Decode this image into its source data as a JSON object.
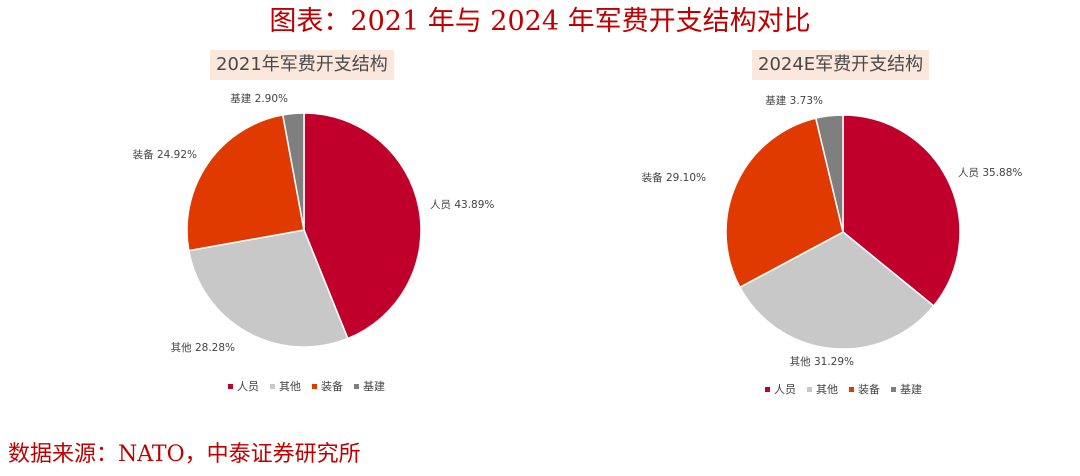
{
  "figure_title": "图表：2021 年与 2024 年军费开支结构对比",
  "source": "数据来源：NATO，中泰证券研究所",
  "chart_data": [
    {
      "type": "pie",
      "title": "2021年军费开支结构",
      "legend_position": "bottom",
      "slices": [
        {
          "label": "人员",
          "value": 43.89,
          "text": "人员 43.89%",
          "color": "#c0002b"
        },
        {
          "label": "其他",
          "value": 28.28,
          "text": "其他 28.28%",
          "color": "#c8c8c8"
        },
        {
          "label": "装备",
          "value": 24.92,
          "text": "装备 24.92%",
          "color": "#e03a00"
        },
        {
          "label": "基建",
          "value": 2.9,
          "text": "基建 2.90%",
          "color": "#7f7f7f"
        }
      ]
    },
    {
      "type": "pie",
      "title": "2024E军费开支结构",
      "legend_position": "bottom",
      "slices": [
        {
          "label": "人员",
          "value": 35.88,
          "text": "人员 35.88%",
          "color": "#c0002b"
        },
        {
          "label": "其他",
          "value": 31.29,
          "text": "其他 31.29%",
          "color": "#c8c8c8"
        },
        {
          "label": "装备",
          "value": 29.1,
          "text": "装备 29.10%",
          "color": "#e03a00"
        },
        {
          "label": "基建",
          "value": 3.73,
          "text": "基建 3.73%",
          "color": "#7f7f7f"
        }
      ]
    }
  ]
}
